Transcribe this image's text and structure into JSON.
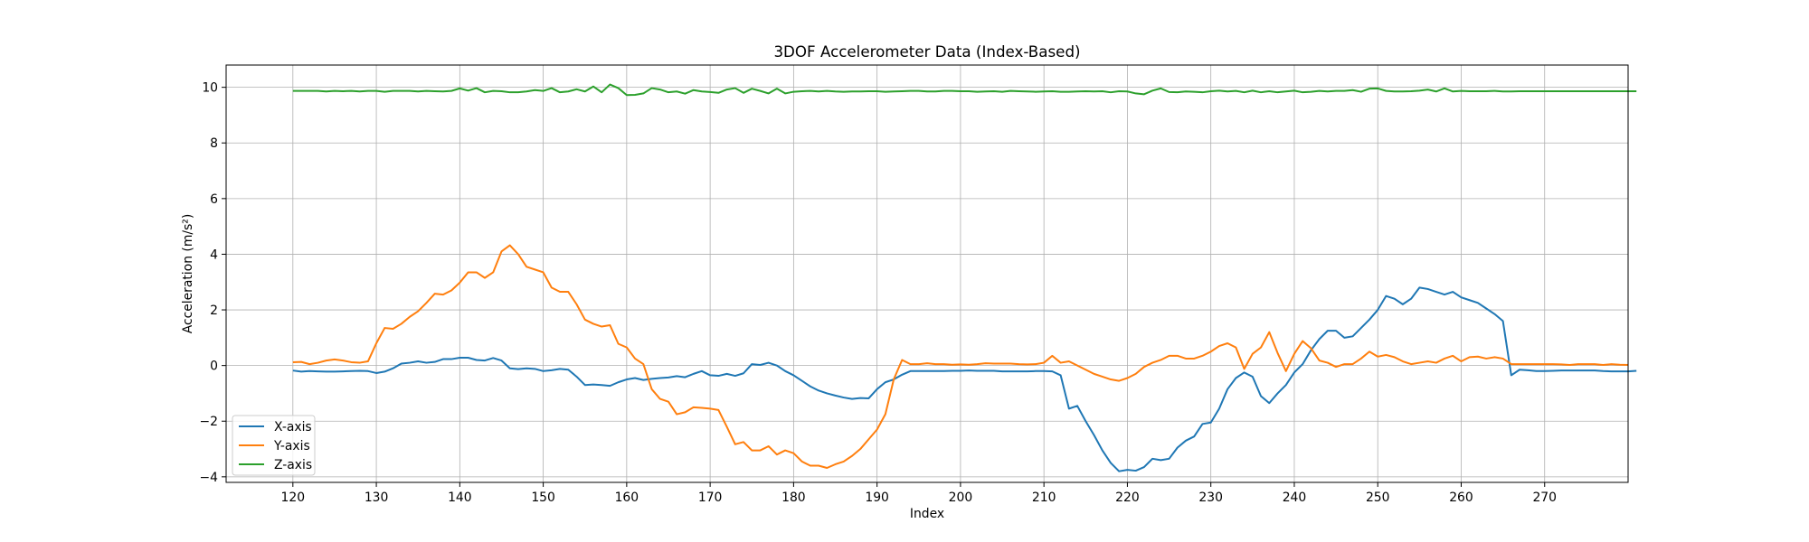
{
  "chart_data": {
    "type": "line",
    "title": "3DOF Accelerometer Data (Index-Based)",
    "xlabel": "Index",
    "ylabel": "Acceleration (m/s²)",
    "xlim": [
      112,
      280
    ],
    "ylim": [
      -4.2,
      10.8
    ],
    "xticks": [
      120,
      130,
      140,
      150,
      160,
      170,
      180,
      190,
      200,
      210,
      220,
      230,
      240,
      250,
      260,
      270
    ],
    "yticks": [
      -4,
      -2,
      0,
      2,
      4,
      6,
      8,
      10
    ],
    "grid": true,
    "legend_position": "bottom-left",
    "x_start": 120,
    "series": [
      {
        "name": "X-axis",
        "color": "#1f77b4",
        "values": [
          -0.18,
          -0.22,
          -0.2,
          -0.21,
          -0.22,
          -0.22,
          -0.21,
          -0.2,
          -0.19,
          -0.2,
          -0.27,
          -0.22,
          -0.1,
          0.07,
          0.1,
          0.15,
          0.1,
          0.13,
          0.23,
          0.23,
          0.28,
          0.28,
          0.2,
          0.18,
          0.27,
          0.18,
          -0.1,
          -0.13,
          -0.1,
          -0.12,
          -0.2,
          -0.17,
          -0.12,
          -0.15,
          -0.4,
          -0.7,
          -0.68,
          -0.7,
          -0.73,
          -0.6,
          -0.5,
          -0.45,
          -0.52,
          -0.48,
          -0.45,
          -0.43,
          -0.38,
          -0.42,
          -0.3,
          -0.2,
          -0.35,
          -0.37,
          -0.3,
          -0.37,
          -0.28,
          0.05,
          0.02,
          0.1,
          0.0,
          -0.2,
          -0.35,
          -0.55,
          -0.75,
          -0.9,
          -1.0,
          -1.08,
          -1.15,
          -1.2,
          -1.17,
          -1.18,
          -0.85,
          -0.6,
          -0.5,
          -0.33,
          -0.2,
          -0.2,
          -0.2,
          -0.2,
          -0.2,
          -0.19,
          -0.19,
          -0.18,
          -0.19,
          -0.19,
          -0.19,
          -0.21,
          -0.21,
          -0.21,
          -0.21,
          -0.2,
          -0.2,
          -0.21,
          -0.35,
          -1.55,
          -1.45,
          -2.0,
          -2.5,
          -3.05,
          -3.5,
          -3.8,
          -3.75,
          -3.78,
          -3.65,
          -3.35,
          -3.4,
          -3.35,
          -2.95,
          -2.7,
          -2.55,
          -2.1,
          -2.05,
          -1.55,
          -0.85,
          -0.45,
          -0.25,
          -0.4,
          -1.1,
          -1.35,
          -1.0,
          -0.7,
          -0.25,
          0.05,
          0.55,
          0.95,
          1.25,
          1.25,
          1.0,
          1.05,
          1.35,
          1.65,
          2.0,
          2.5,
          2.4,
          2.2,
          2.4,
          2.8,
          2.75,
          2.65,
          2.55,
          2.65,
          2.45,
          2.35,
          2.25,
          2.05,
          1.85,
          1.6,
          -0.35,
          -0.15,
          -0.17,
          -0.2,
          -0.2,
          -0.19,
          -0.18,
          -0.18,
          -0.18,
          -0.18,
          -0.18,
          -0.2,
          -0.21,
          -0.21,
          -0.21,
          -0.19
        ]
      },
      {
        "name": "Y-axis",
        "color": "#ff7f0e",
        "values": [
          0.12,
          0.13,
          0.05,
          0.1,
          0.18,
          0.22,
          0.18,
          0.12,
          0.1,
          0.15,
          0.8,
          1.35,
          1.32,
          1.5,
          1.75,
          1.95,
          2.25,
          2.58,
          2.55,
          2.7,
          2.98,
          3.35,
          3.35,
          3.15,
          3.35,
          4.1,
          4.32,
          4.0,
          3.55,
          3.45,
          3.35,
          2.8,
          2.65,
          2.65,
          2.2,
          1.65,
          1.5,
          1.4,
          1.45,
          0.78,
          0.65,
          0.25,
          0.05,
          -0.85,
          -1.2,
          -1.3,
          -1.75,
          -1.68,
          -1.5,
          -1.52,
          -1.55,
          -1.6,
          -2.2,
          -2.83,
          -2.75,
          -3.05,
          -3.05,
          -2.9,
          -3.2,
          -3.05,
          -3.15,
          -3.45,
          -3.6,
          -3.6,
          -3.68,
          -3.55,
          -3.45,
          -3.25,
          -3.0,
          -2.65,
          -2.3,
          -1.75,
          -0.5,
          0.2,
          0.05,
          0.05,
          0.08,
          0.05,
          0.05,
          0.03,
          0.04,
          0.03,
          0.05,
          0.08,
          0.07,
          0.07,
          0.07,
          0.05,
          0.04,
          0.05,
          0.1,
          0.35,
          0.1,
          0.15,
          0.0,
          -0.15,
          -0.3,
          -0.4,
          -0.5,
          -0.55,
          -0.45,
          -0.3,
          -0.05,
          0.1,
          0.2,
          0.35,
          0.35,
          0.25,
          0.25,
          0.35,
          0.5,
          0.7,
          0.8,
          0.65,
          -0.12,
          0.42,
          0.65,
          1.2,
          0.45,
          -0.2,
          0.42,
          0.88,
          0.62,
          0.18,
          0.1,
          -0.05,
          0.05,
          0.05,
          0.25,
          0.5,
          0.32,
          0.38,
          0.3,
          0.15,
          0.05,
          0.1,
          0.15,
          0.1,
          0.25,
          0.35,
          0.15,
          0.3,
          0.32,
          0.25,
          0.3,
          0.25,
          0.05,
          0.05,
          0.05,
          0.05,
          0.05,
          0.05,
          0.04,
          0.02,
          0.05,
          0.05,
          0.05,
          0.02,
          0.05,
          0.03,
          0.02
        ]
      },
      {
        "name": "Z-axis",
        "color": "#2ca02c",
        "values": [
          9.87,
          9.87,
          9.87,
          9.87,
          9.85,
          9.87,
          9.86,
          9.87,
          9.85,
          9.87,
          9.87,
          9.84,
          9.87,
          9.87,
          9.87,
          9.85,
          9.87,
          9.86,
          9.85,
          9.87,
          9.96,
          9.88,
          9.97,
          9.82,
          9.87,
          9.86,
          9.82,
          9.82,
          9.85,
          9.9,
          9.87,
          9.97,
          9.82,
          9.85,
          9.93,
          9.85,
          10.03,
          9.82,
          10.1,
          9.97,
          9.72,
          9.73,
          9.78,
          9.97,
          9.92,
          9.82,
          9.85,
          9.77,
          9.9,
          9.85,
          9.83,
          9.8,
          9.92,
          9.97,
          9.8,
          9.95,
          9.87,
          9.78,
          9.95,
          9.78,
          9.84,
          9.86,
          9.87,
          9.85,
          9.87,
          9.85,
          9.84,
          9.85,
          9.85,
          9.86,
          9.86,
          9.84,
          9.85,
          9.86,
          9.87,
          9.87,
          9.85,
          9.85,
          9.87,
          9.87,
          9.86,
          9.86,
          9.84,
          9.85,
          9.86,
          9.84,
          9.87,
          9.86,
          9.85,
          9.84,
          9.85,
          9.86,
          9.84,
          9.84,
          9.85,
          9.86,
          9.85,
          9.86,
          9.82,
          9.86,
          9.85,
          9.78,
          9.75,
          9.88,
          9.96,
          9.83,
          9.82,
          9.85,
          9.84,
          9.82,
          9.86,
          9.88,
          9.85,
          9.87,
          9.82,
          9.88,
          9.82,
          9.86,
          9.82,
          9.85,
          9.88,
          9.82,
          9.84,
          9.87,
          9.85,
          9.87,
          9.87,
          9.9,
          9.84,
          9.95,
          9.96,
          9.87,
          9.85,
          9.85,
          9.86,
          9.88,
          9.92,
          9.85,
          9.96,
          9.85,
          9.87,
          9.86,
          9.86,
          9.86,
          9.87,
          9.85,
          9.85,
          9.86,
          9.86,
          9.86,
          9.86,
          9.86,
          9.86,
          9.86,
          9.86,
          9.86,
          9.86,
          9.86,
          9.86,
          9.86,
          9.86,
          9.86
        ]
      }
    ]
  }
}
